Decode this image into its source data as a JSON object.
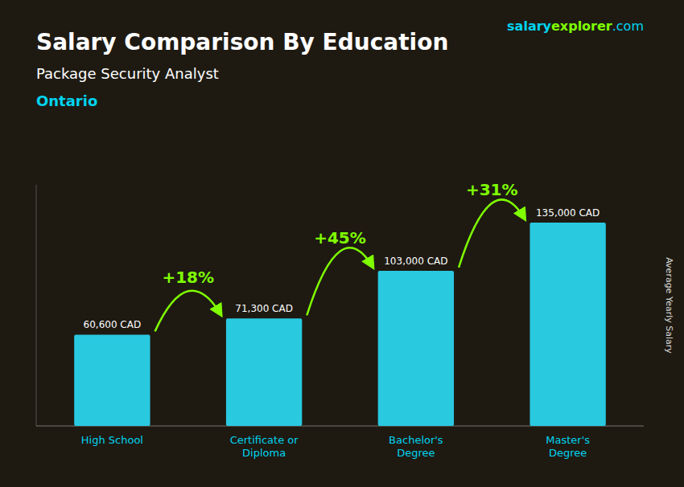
{
  "chart_data": {
    "type": "bar",
    "title": "Salary Comparison By Education",
    "subtitle": "Package Security Analyst",
    "annotations": [
      "Ontario"
    ],
    "brand": [
      "salary",
      "explorer",
      ".com"
    ],
    "ylabel": "Average Yearly Salary",
    "categories": [
      "High School",
      "Certificate or\nDiploma",
      "Bachelor's\nDegree",
      "Master's\nDegree"
    ],
    "values": [
      60600,
      71300,
      103000,
      135000
    ],
    "value_labels": [
      "60,600 CAD",
      "71,300 CAD",
      "103,000 CAD",
      "135,000 CAD"
    ],
    "data_labels": true,
    "change_labels": {
      "labels": [
        "+18%",
        "+45%",
        "+31%"
      ],
      "color": "#7fff00"
    },
    "color": "#29c9e0",
    "ylim": [
      0,
      160000
    ],
    "tick_labels": "x",
    "grid": false
  }
}
